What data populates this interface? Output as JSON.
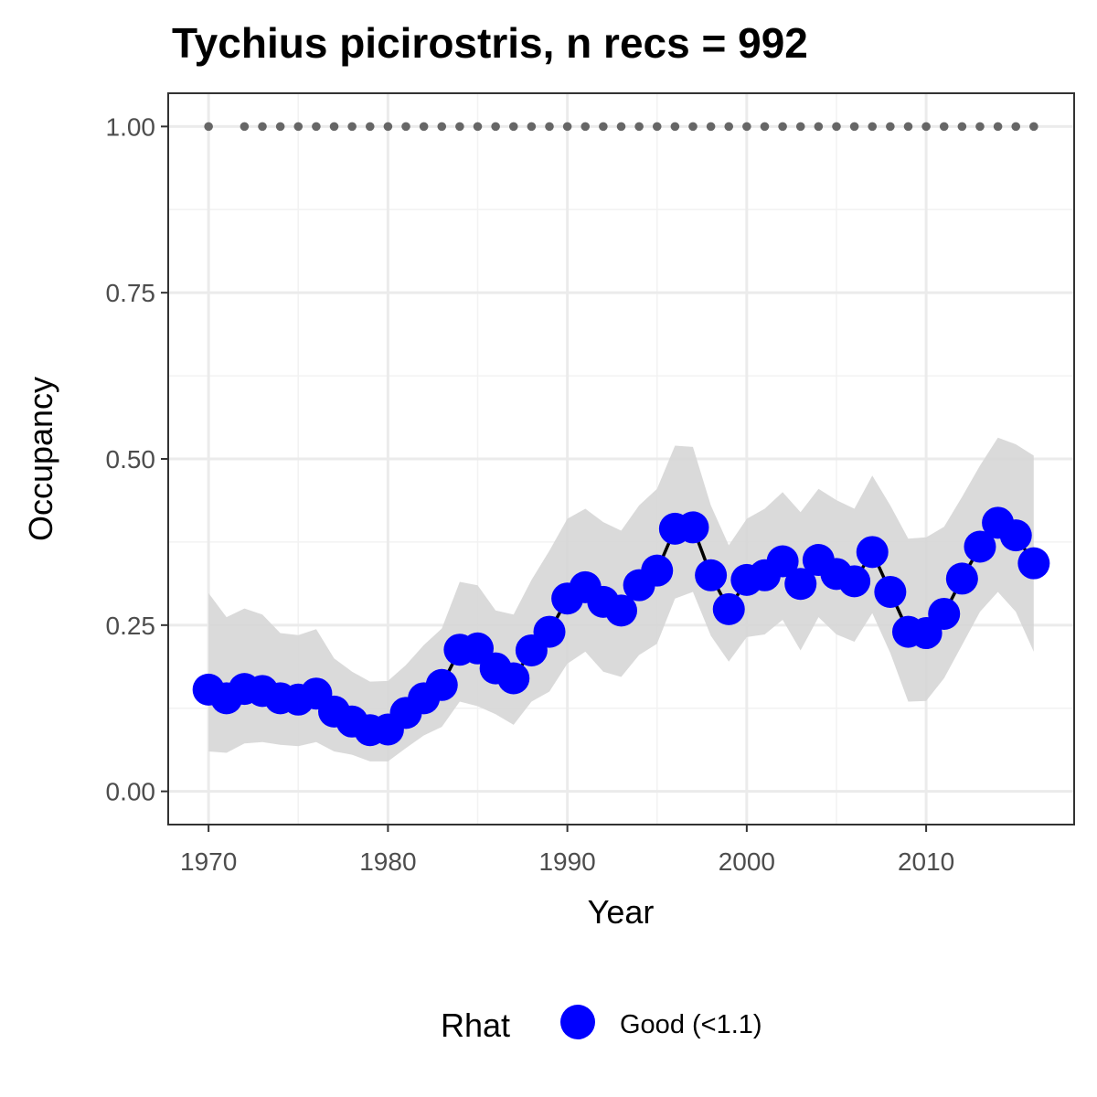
{
  "chart_data": {
    "type": "line",
    "title": "Tychius picirostris, n recs = 992",
    "xlabel": "Year",
    "ylabel": "Occupancy",
    "xlim": [
      1967.75,
      2018.25
    ],
    "ylim": [
      -0.05,
      1.05
    ],
    "x_ticks": [
      1970,
      1980,
      1990,
      2000,
      2010
    ],
    "x_tick_labels": [
      "1970",
      "1980",
      "1990",
      "2000",
      "2010"
    ],
    "y_ticks": [
      0,
      0.25,
      0.5,
      0.75,
      1
    ],
    "y_tick_labels": [
      "0.00",
      "0.25",
      "0.50",
      "0.75",
      "1.00"
    ],
    "grid": true,
    "legend": {
      "title": "Rhat",
      "position": "bottom",
      "entries": [
        {
          "label": "Good (<1.1)",
          "color": "#0000ff"
        }
      ]
    },
    "colors": {
      "points": "#0000ff",
      "line": "#000000",
      "ribbon": "#d6d6d6",
      "record_dots": "#666666"
    },
    "series": [
      {
        "x": [
          1970,
          1971,
          1972,
          1973,
          1974,
          1975,
          1976,
          1977,
          1978,
          1979,
          1980,
          1981,
          1982,
          1983,
          1984,
          1985,
          1986,
          1987,
          1988,
          1989,
          1990,
          1991,
          1992,
          1993,
          1994,
          1995,
          1996,
          1997,
          1998,
          1999,
          2000,
          2001,
          2002,
          2003,
          2004,
          2005,
          2006,
          2007,
          2008,
          2009,
          2010,
          2011,
          2012,
          2013,
          2014,
          2015,
          2016
        ],
        "values": [
          0.153,
          0.14,
          0.154,
          0.151,
          0.14,
          0.138,
          0.147,
          0.12,
          0.105,
          0.092,
          0.093,
          0.118,
          0.14,
          0.16,
          0.213,
          0.215,
          0.185,
          0.17,
          0.212,
          0.24,
          0.29,
          0.307,
          0.285,
          0.272,
          0.31,
          0.332,
          0.395,
          0.397,
          0.325,
          0.274,
          0.318,
          0.325,
          0.346,
          0.312,
          0.348,
          0.327,
          0.316,
          0.36,
          0.3,
          0.24,
          0.238,
          0.267,
          0.32,
          0.368,
          0.404,
          0.385,
          0.343
        ],
        "lower": [
          0.06,
          0.058,
          0.072,
          0.074,
          0.07,
          0.068,
          0.074,
          0.06,
          0.055,
          0.045,
          0.045,
          0.065,
          0.084,
          0.097,
          0.135,
          0.128,
          0.116,
          0.1,
          0.135,
          0.15,
          0.192,
          0.21,
          0.18,
          0.172,
          0.205,
          0.222,
          0.29,
          0.3,
          0.234,
          0.195,
          0.232,
          0.236,
          0.258,
          0.212,
          0.262,
          0.236,
          0.225,
          0.268,
          0.208,
          0.135,
          0.136,
          0.17,
          0.22,
          0.27,
          0.3,
          0.27,
          0.21
        ],
        "upper": [
          0.298,
          0.262,
          0.275,
          0.266,
          0.238,
          0.235,
          0.244,
          0.2,
          0.18,
          0.165,
          0.166,
          0.19,
          0.22,
          0.245,
          0.315,
          0.31,
          0.272,
          0.266,
          0.318,
          0.362,
          0.41,
          0.425,
          0.405,
          0.392,
          0.43,
          0.455,
          0.52,
          0.518,
          0.43,
          0.37,
          0.41,
          0.425,
          0.45,
          0.42,
          0.455,
          0.438,
          0.425,
          0.475,
          0.43,
          0.38,
          0.382,
          0.398,
          0.443,
          0.49,
          0.532,
          0.522,
          0.505
        ]
      }
    ],
    "record_years": [
      1970,
      1972,
      1973,
      1974,
      1975,
      1976,
      1977,
      1978,
      1979,
      1980,
      1981,
      1982,
      1983,
      1984,
      1985,
      1986,
      1987,
      1988,
      1989,
      1990,
      1991,
      1992,
      1993,
      1994,
      1995,
      1996,
      1997,
      1998,
      1999,
      2000,
      2001,
      2002,
      2003,
      2004,
      2005,
      2006,
      2007,
      2008,
      2009,
      2010,
      2011,
      2012,
      2013,
      2014,
      2015,
      2016
    ]
  }
}
